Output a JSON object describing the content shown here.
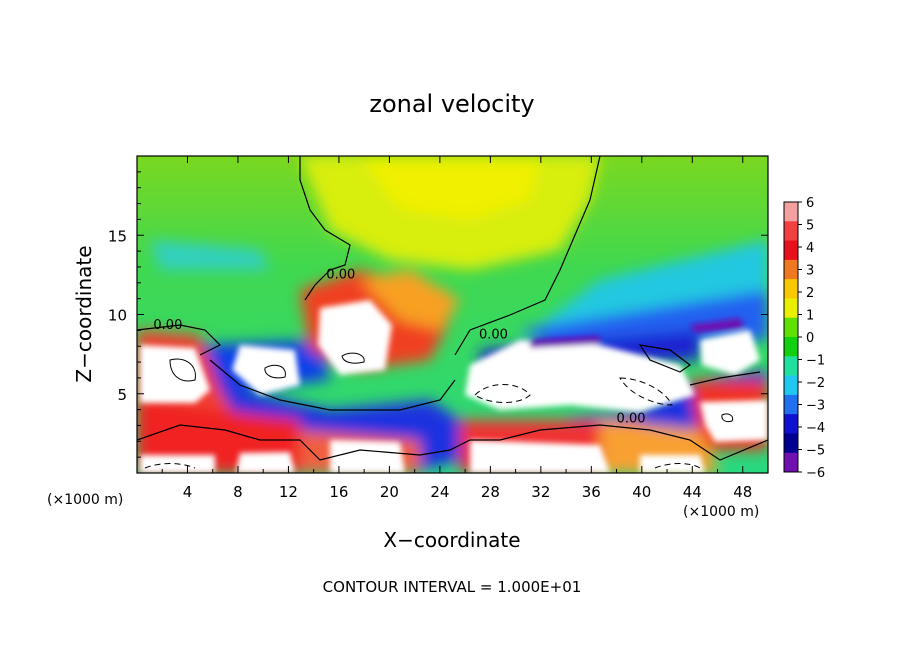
{
  "chart_data": {
    "type": "heatmap",
    "title": "zonal velocity",
    "xlabel": "X−coordinate",
    "ylabel": "Z−coordinate",
    "x_units_left": "(×1000 m)",
    "x_units_right": "(×1000 m)",
    "footer": "CONTOUR INTERVAL = 1.000E+01",
    "xlim": [
      0,
      50
    ],
    "ylim": [
      0,
      20
    ],
    "x_ticks": [
      4,
      8,
      12,
      16,
      20,
      24,
      28,
      32,
      36,
      40,
      44,
      48
    ],
    "x_tick_labels": [
      "4",
      "8",
      "12",
      "16",
      "20",
      "24",
      "28",
      "32",
      "36",
      "40",
      "44",
      "48"
    ],
    "y_ticks": [
      5,
      10,
      15
    ],
    "y_tick_labels": [
      "5",
      "10",
      "15"
    ],
    "colorbar": {
      "labels": [
        "6",
        "5",
        "4",
        "3",
        "2",
        "1",
        "0",
        "−1",
        "−2",
        "−3",
        "−4",
        "−5",
        "−6"
      ],
      "colors": [
        "#f4a0a0",
        "#f04040",
        "#e8101c",
        "#f07820",
        "#f8c800",
        "#e8f000",
        "#60e000",
        "#10d010",
        "#20e0a0",
        "#20c8f0",
        "#2070f0",
        "#1010d0",
        "#000090",
        "#7010b0"
      ]
    },
    "contour_labels": [
      {
        "text": "0.00",
        "x": 1.3,
        "y": 9.4
      },
      {
        "text": "0.00",
        "x": 15.0,
        "y": 12.6
      },
      {
        "text": "0.00",
        "x": 27.1,
        "y": 8.8
      },
      {
        "text": "0.00",
        "x": 38.0,
        "y": 3.5
      }
    ],
    "colors": {
      "background_field": "#48d848",
      "upper_yellow": "#e8f000",
      "positive_core": "#ffffff",
      "blue_band": "#1a40e8"
    }
  }
}
